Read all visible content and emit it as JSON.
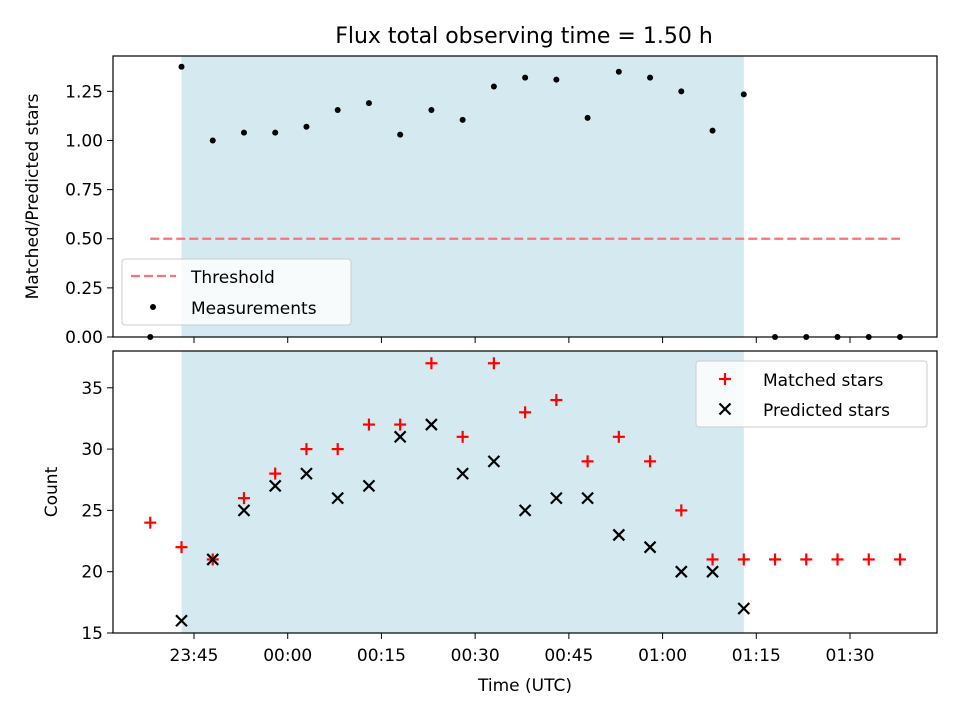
{
  "chart_data": [
    {
      "type": "scatter",
      "title": "Flux total observing time = 1.50 h",
      "xlabel": "",
      "ylabel": "Matched/Predicted stars",
      "ylim": [
        0,
        1.43
      ],
      "yticks": [
        "0.00",
        "0.25",
        "0.50",
        "0.75",
        "1.00",
        "1.25"
      ],
      "shaded_span": {
        "start": "23:43",
        "end": "01:13",
        "color": "#d4eaf0"
      },
      "threshold": {
        "name": "Threshold",
        "value": 0.5,
        "x_start": "23:38",
        "x_end": "01:38",
        "color": "#f47676"
      },
      "legend_position": "lower-left",
      "series": [
        {
          "name": "Measurements",
          "marker": "dot",
          "color": "#000000",
          "x": [
            "23:38",
            "23:43",
            "23:48",
            "23:53",
            "23:58",
            "00:03",
            "00:08",
            "00:13",
            "00:18",
            "00:23",
            "00:28",
            "00:33",
            "00:38",
            "00:43",
            "00:48",
            "00:53",
            "00:58",
            "01:03",
            "01:08",
            "01:13",
            "01:18",
            "01:23",
            "01:28",
            "01:33",
            "01:38"
          ],
          "values": [
            0.0,
            1.375,
            1.0,
            1.04,
            1.04,
            1.07,
            1.155,
            1.19,
            1.03,
            1.155,
            1.105,
            1.275,
            1.32,
            1.31,
            1.115,
            1.35,
            1.32,
            1.25,
            1.05,
            1.235,
            0.0,
            0.0,
            0.0,
            0.0,
            0.0
          ]
        }
      ]
    },
    {
      "type": "scatter",
      "title": "",
      "xlabel": "Time (UTC)",
      "ylabel": "Count",
      "ylim": [
        15,
        38
      ],
      "yticks": [
        "15",
        "20",
        "25",
        "30",
        "35"
      ],
      "xticks": [
        "23:45",
        "00:00",
        "00:15",
        "00:30",
        "00:45",
        "01:00",
        "01:15",
        "01:30"
      ],
      "shaded_span": {
        "start": "23:43",
        "end": "01:13",
        "color": "#d4eaf0"
      },
      "legend_position": "top-right",
      "series": [
        {
          "name": "Matched stars",
          "marker": "plus",
          "color": "#ff0000",
          "x": [
            "23:38",
            "23:43",
            "23:48",
            "23:53",
            "23:58",
            "00:03",
            "00:08",
            "00:13",
            "00:18",
            "00:23",
            "00:28",
            "00:33",
            "00:38",
            "00:43",
            "00:48",
            "00:53",
            "00:58",
            "01:03",
            "01:08",
            "01:13",
            "01:18",
            "01:23",
            "01:28",
            "01:33",
            "01:38"
          ],
          "values": [
            24,
            22,
            21,
            26,
            28,
            30,
            30,
            32,
            32,
            37,
            31,
            37,
            33,
            34,
            29,
            31,
            29,
            25,
            21,
            21,
            21,
            21,
            21,
            21,
            21
          ]
        },
        {
          "name": "Predicted stars",
          "marker": "x",
          "color": "#000000",
          "x": [
            "23:43",
            "23:48",
            "23:53",
            "23:58",
            "00:03",
            "00:08",
            "00:13",
            "00:18",
            "00:23",
            "00:28",
            "00:33",
            "00:38",
            "00:43",
            "00:48",
            "00:53",
            "00:58",
            "01:03",
            "01:08",
            "01:13"
          ],
          "values": [
            16,
            21,
            25,
            27,
            28,
            26,
            27,
            31,
            32,
            28,
            29,
            25,
            26,
            26,
            23,
            22,
            20,
            20,
            17
          ]
        }
      ]
    }
  ]
}
